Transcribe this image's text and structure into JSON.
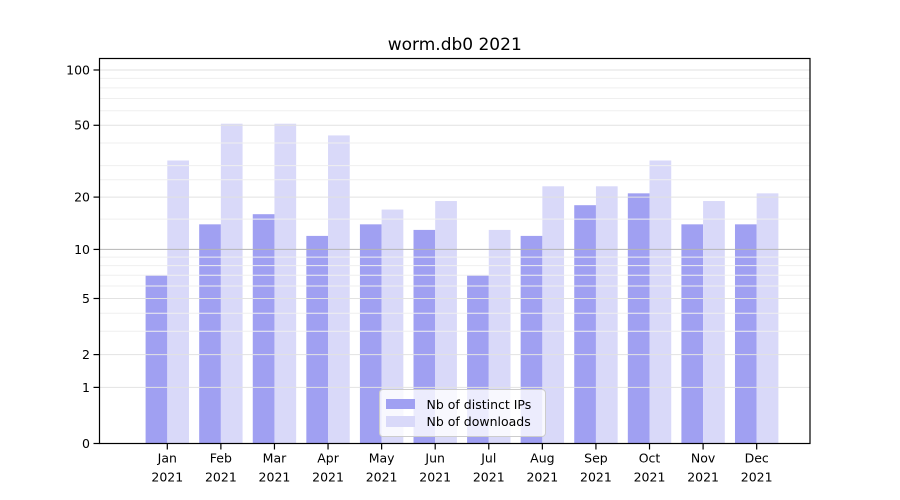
{
  "figure": {
    "background": "#ffffff"
  },
  "chart_data": {
    "type": "bar",
    "title": "worm.db0 2021",
    "categories": [
      "Jan",
      "Feb",
      "Mar",
      "Apr",
      "May",
      "Jun",
      "Jul",
      "Aug",
      "Sep",
      "Oct",
      "Nov",
      "Dec"
    ],
    "year_label": "2021",
    "series": [
      {
        "name": "Nb of distinct IPs",
        "color": "#a0a0f2",
        "values": [
          7,
          14,
          16,
          12,
          14,
          13,
          7,
          12,
          18,
          21,
          14,
          14
        ]
      },
      {
        "name": "Nb of downloads",
        "color": "#d9d9f9",
        "values": [
          32,
          51,
          51,
          44,
          17,
          19,
          13,
          23,
          23,
          32,
          19,
          21
        ]
      }
    ],
    "xlabel": "",
    "ylabel": "",
    "y_scale": "log10(value+1)",
    "y_ticks": [
      0,
      1,
      2,
      5,
      10,
      20,
      50,
      100
    ],
    "y_minor_ticks": [
      3,
      4,
      6,
      7,
      8,
      9,
      15,
      25,
      30,
      40,
      60,
      70,
      80,
      90
    ],
    "ylim": [
      0,
      115.4
    ],
    "grid": true,
    "grid_color_major": "#e2e2e2",
    "grid_color_emphasis": "#b5b5b5",
    "grid_emphasis_at": 10,
    "grid_color_minor": "#efefef",
    "legend_position": "lower center",
    "axis_color": "#000000",
    "text_color": "#000000"
  }
}
